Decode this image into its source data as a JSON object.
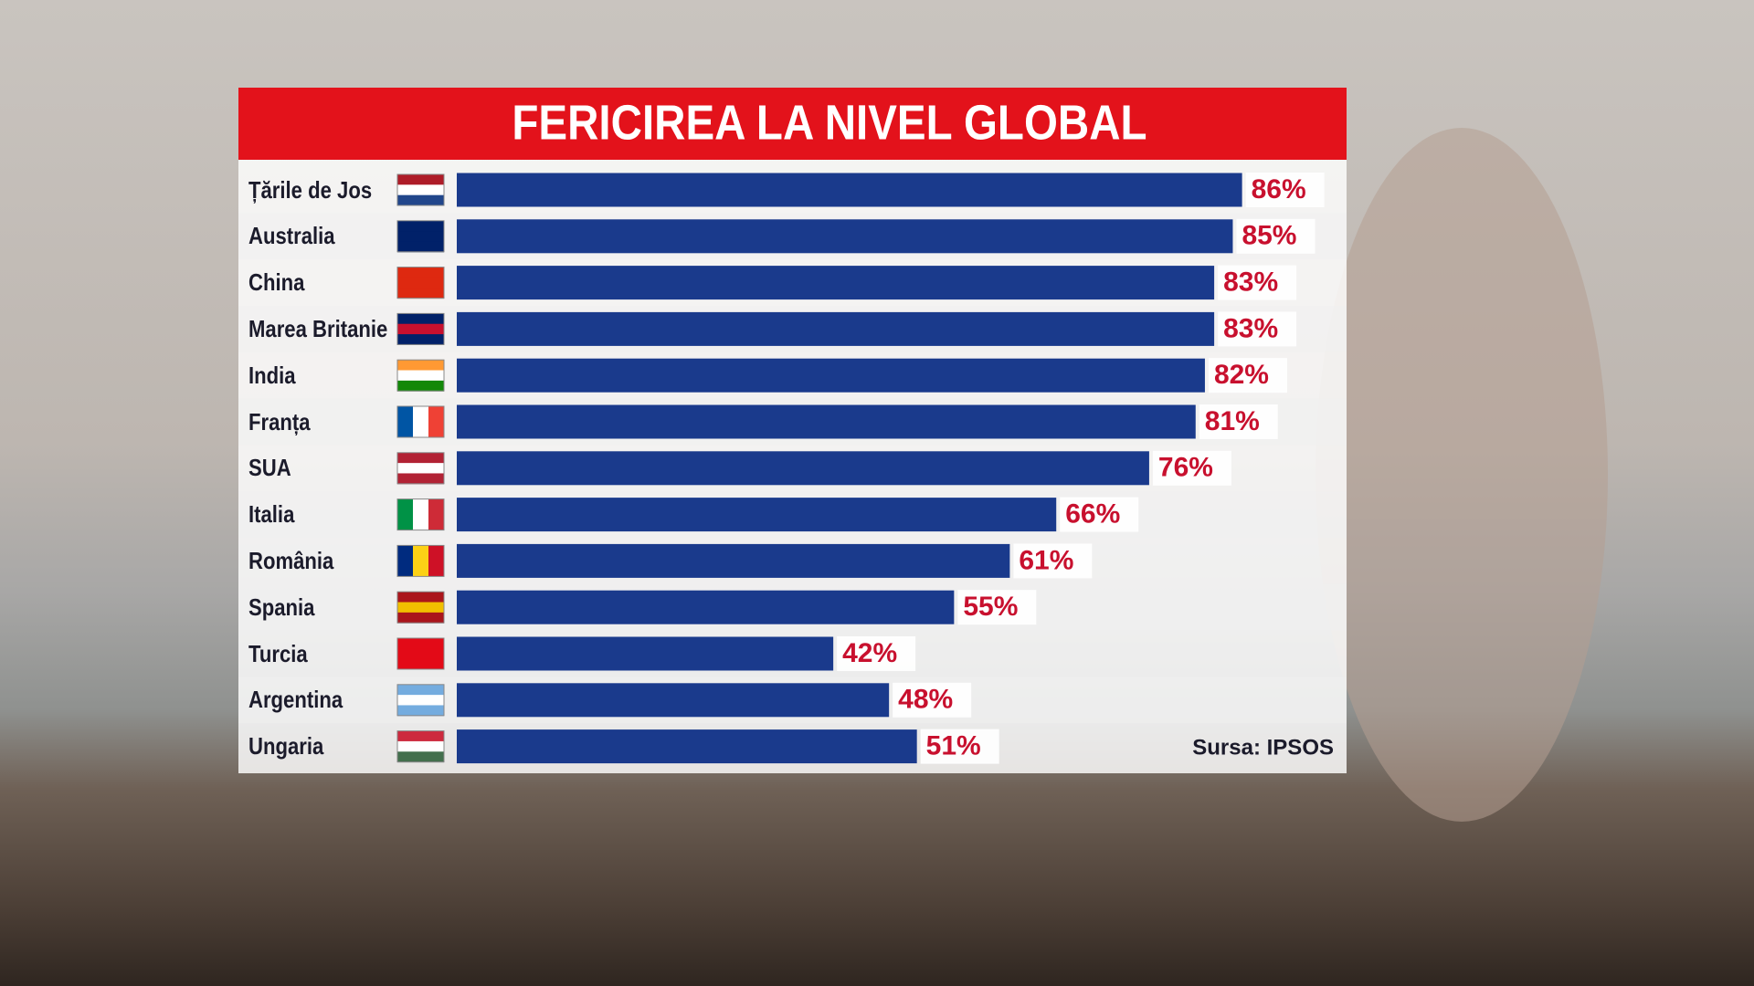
{
  "chart_data": {
    "type": "bar",
    "orientation": "horizontal",
    "title": "FERICIREA LA NIVEL GLOBAL",
    "categories": [
      "Țările de Jos",
      "Australia",
      "China",
      "Marea Britanie",
      "India",
      "Franța",
      "SUA",
      "Italia",
      "România",
      "Spania",
      "Turcia",
      "Argentina",
      "Ungaria"
    ],
    "values": [
      86,
      85,
      83,
      83,
      82,
      81,
      76,
      66,
      61,
      55,
      42,
      48,
      51
    ],
    "value_labels": [
      "86%",
      "85%",
      "83%",
      "83%",
      "82%",
      "81%",
      "76%",
      "66%",
      "61%",
      "55%",
      "42%",
      "48%",
      "51%"
    ],
    "color": "#1a3a8c",
    "label_color": "#c8102e",
    "source": "Sursa: IPSOS"
  }
}
